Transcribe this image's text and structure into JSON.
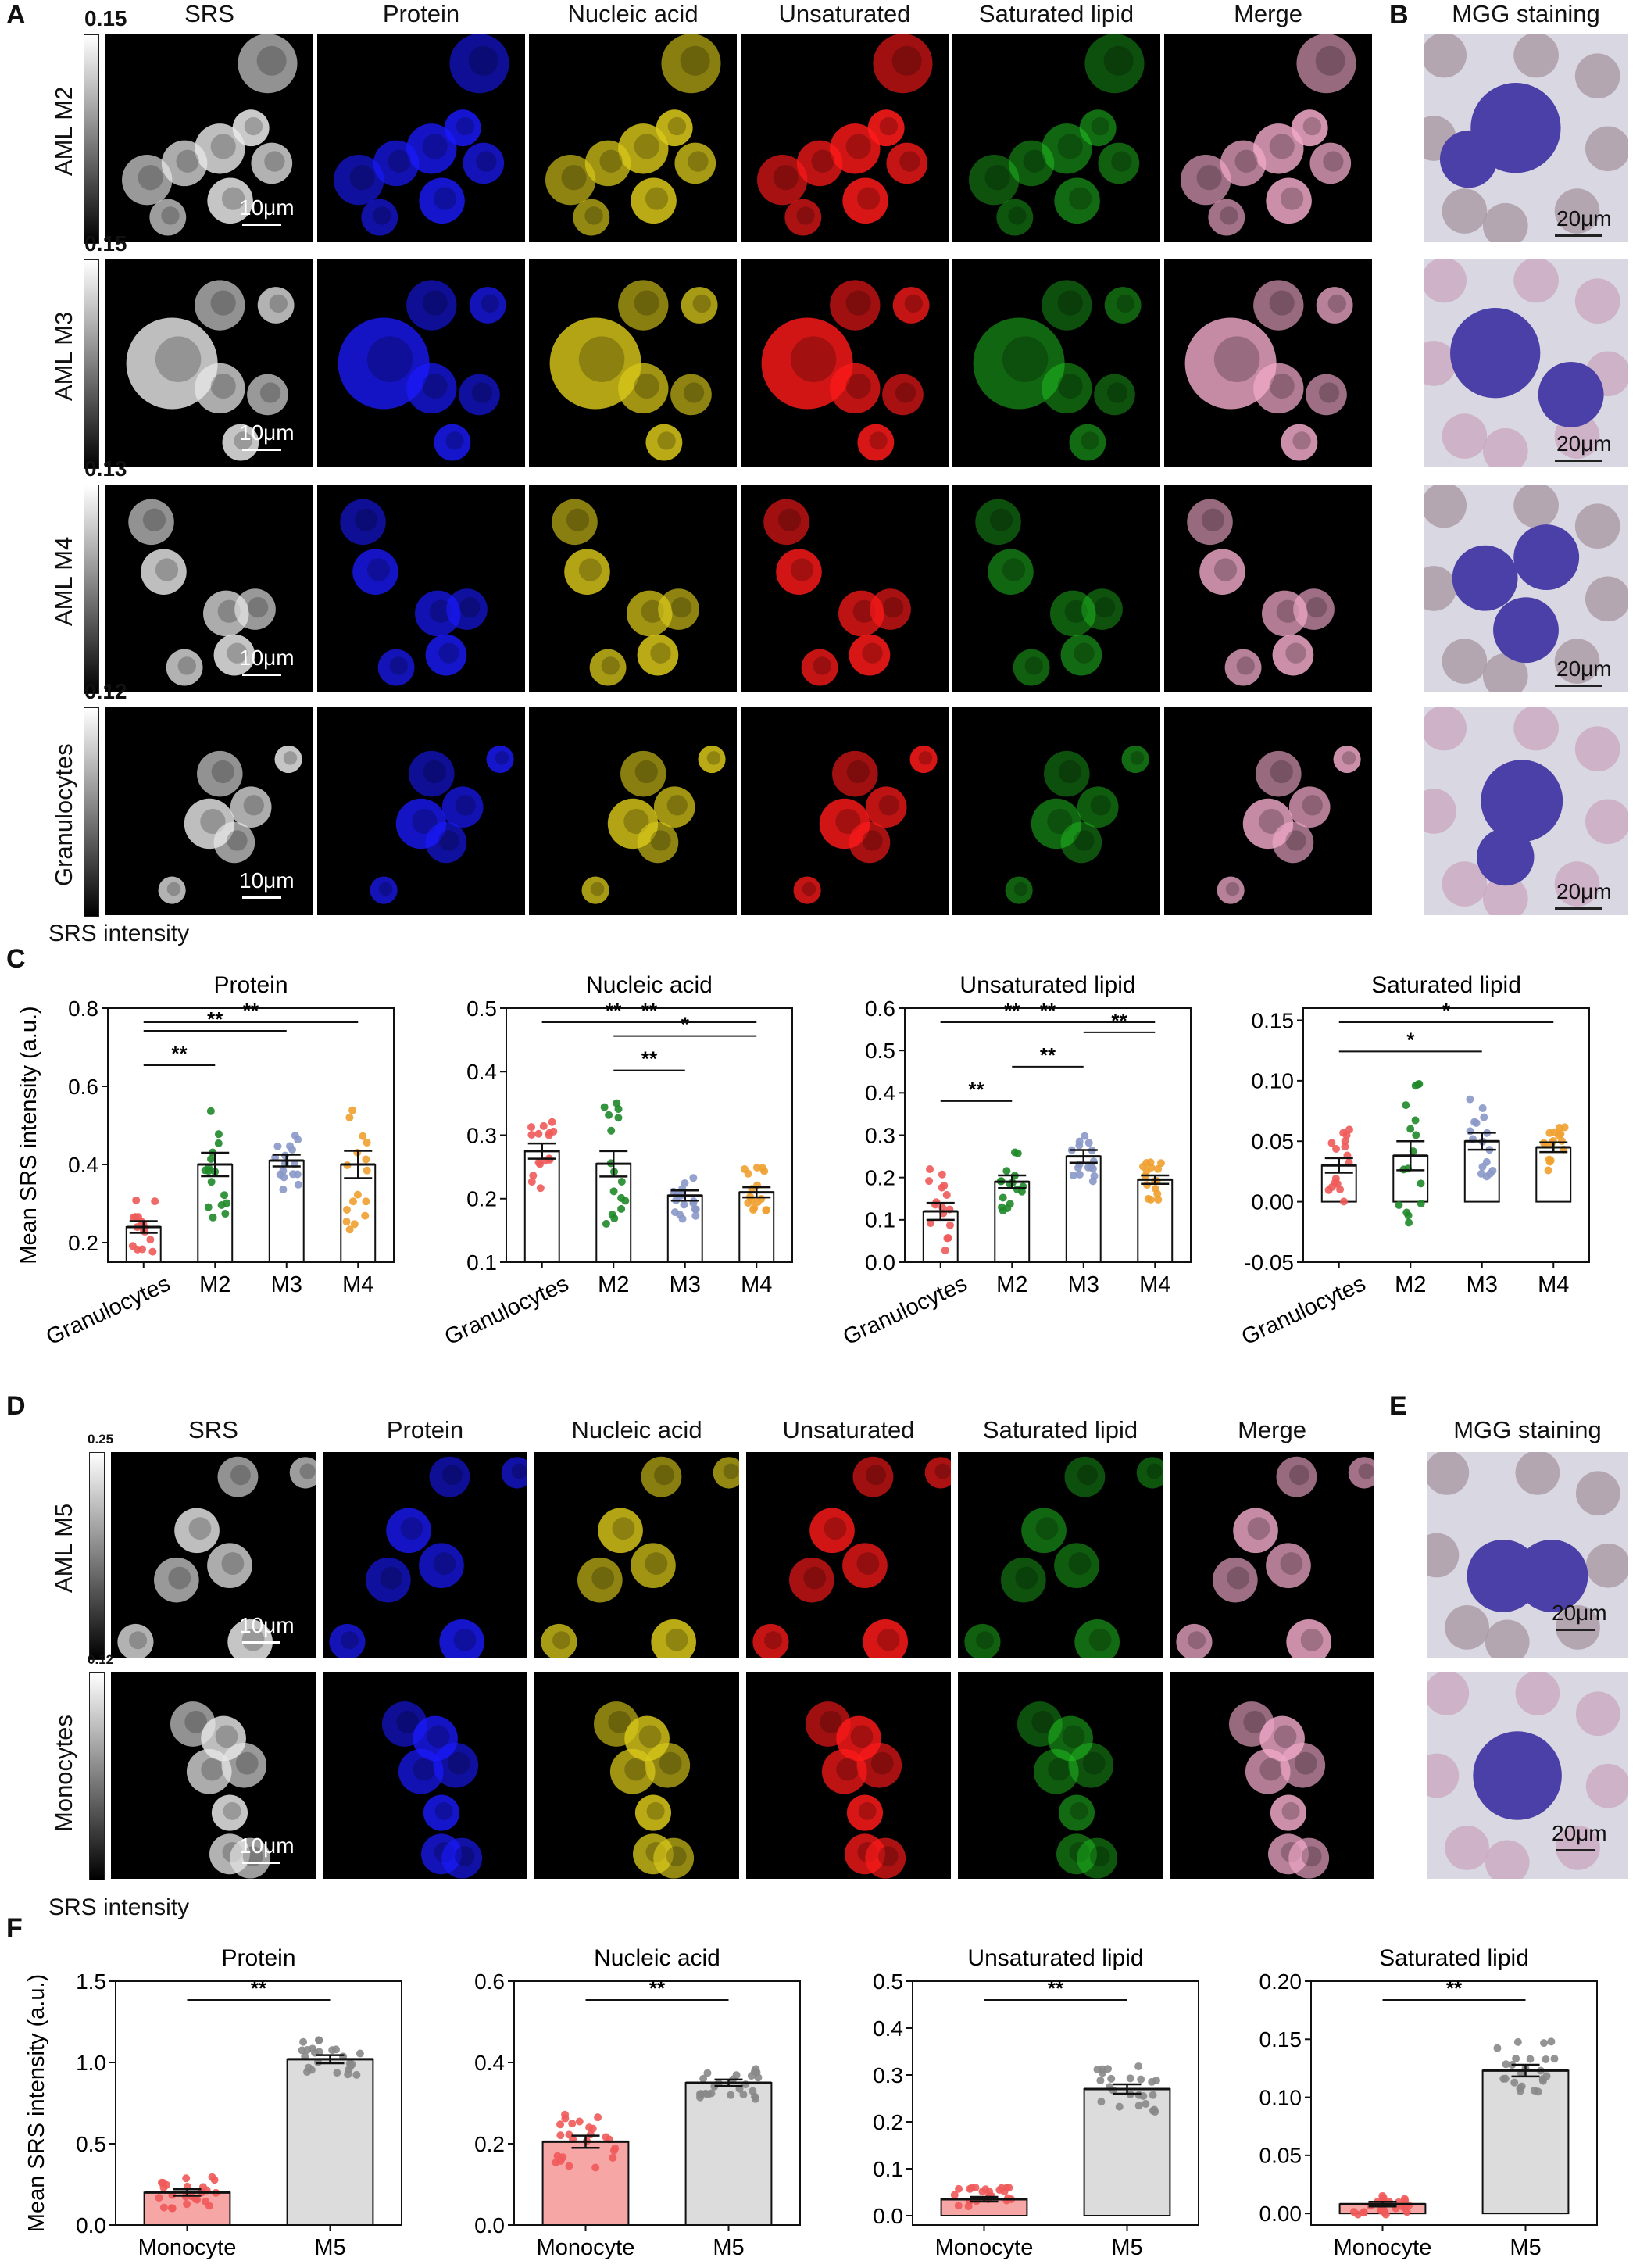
{
  "panels": {
    "A": "A",
    "B": "B",
    "C": "C",
    "D": "D",
    "E": "E",
    "F": "F"
  },
  "channels": [
    "SRS",
    "Protein",
    "Nucleic acid",
    "Unsaturated",
    "Saturated lipid",
    "Merge"
  ],
  "mgg_label": "MGG staining",
  "srs_intensity_label": "SRS intensity",
  "panelA_rows": [
    {
      "label": "AML M2",
      "colorbar_max": "0.15",
      "scale": "10μm",
      "mgg_scale": "20μm"
    },
    {
      "label": "AML M3",
      "colorbar_max": "0.15",
      "scale": "10μm",
      "mgg_scale": "20μm"
    },
    {
      "label": "AML M4",
      "colorbar_max": "0.13",
      "scale": "10μm",
      "mgg_scale": "20μm"
    },
    {
      "label": "Granulocytes",
      "colorbar_max": "0.12",
      "scale": "10μm",
      "mgg_scale": "20μm"
    }
  ],
  "panelD_rows": [
    {
      "label": "AML M5",
      "colorbar_max": "0.25",
      "scale": "10μm",
      "mgg_scale": "20μm"
    },
    {
      "label": "Monocytes",
      "colorbar_max": "0.12",
      "scale": "10μm",
      "mgg_scale": "20μm"
    }
  ],
  "channel_colors": {
    "srs": "#e8e8e8",
    "protein": "#1a1aff",
    "nucleic": "#d9c81a",
    "unsat": "#ff1a1a",
    "sat": "#22cc22",
    "merge": "#f0a8c8"
  },
  "chart_data": [
    {
      "type": "bar",
      "panel": "C",
      "title": "Protein",
      "ylabel": "Mean SRS intensity (a.u.)",
      "ylim": [
        0.15,
        0.8
      ],
      "yticks": [
        "0.2",
        "0.4",
        "0.6",
        "0.8"
      ],
      "ytick_values": [
        0.2,
        0.4,
        0.6,
        0.8
      ],
      "categories": [
        "Granulocytes",
        "M2",
        "M3",
        "M4"
      ],
      "values": [
        0.24,
        0.4,
        0.41,
        0.4
      ],
      "sem": [
        0.015,
        0.03,
        0.015,
        0.035
      ],
      "colors": [
        "#f05a5a",
        "#1f8a2a",
        "#8a98c8",
        "#f0a030"
      ],
      "sig": [
        {
          "from": 0,
          "to": 1,
          "label": "**"
        },
        {
          "from": 0,
          "to": 2,
          "label": "**"
        },
        {
          "from": 0,
          "to": 3,
          "label": "**"
        }
      ]
    },
    {
      "type": "bar",
      "panel": "C",
      "title": "Nucleic acid",
      "ylabel": "",
      "ylim": [
        0.1,
        0.5
      ],
      "yticks": [
        "0.1",
        "0.2",
        "0.3",
        "0.4",
        "0.5"
      ],
      "ytick_values": [
        0.1,
        0.2,
        0.3,
        0.4,
        0.5
      ],
      "categories": [
        "Granulocytes",
        "M2",
        "M3",
        "M4"
      ],
      "values": [
        0.275,
        0.255,
        0.205,
        0.21
      ],
      "sem": [
        0.012,
        0.02,
        0.008,
        0.008
      ],
      "colors": [
        "#f05a5a",
        "#1f8a2a",
        "#8a98c8",
        "#f0a030"
      ],
      "sig": [
        {
          "from": 1,
          "to": 2,
          "label": "**"
        },
        {
          "from": 1,
          "to": 3,
          "label": "*"
        },
        {
          "from": 0,
          "to": 2,
          "label": "**"
        },
        {
          "from": 0,
          "to": 3,
          "label": "**"
        }
      ]
    },
    {
      "type": "bar",
      "panel": "C",
      "title": "Unsaturated lipid",
      "ylabel": "",
      "ylim": [
        0.0,
        0.6
      ],
      "yticks": [
        "0.0",
        "0.1",
        "0.2",
        "0.3",
        "0.4",
        "0.5",
        "0.6"
      ],
      "ytick_values": [
        0,
        0.1,
        0.2,
        0.3,
        0.4,
        0.5,
        0.6
      ],
      "categories": [
        "Granulocytes",
        "M2",
        "M3",
        "M4"
      ],
      "values": [
        0.12,
        0.19,
        0.25,
        0.195
      ],
      "sem": [
        0.02,
        0.015,
        0.015,
        0.01
      ],
      "colors": [
        "#f05a5a",
        "#1f8a2a",
        "#8a98c8",
        "#f0a030"
      ],
      "sig": [
        {
          "from": 0,
          "to": 1,
          "label": "**"
        },
        {
          "from": 1,
          "to": 2,
          "label": "**"
        },
        {
          "from": 2,
          "to": 3,
          "label": "**"
        },
        {
          "from": 0,
          "to": 2,
          "label": "**"
        },
        {
          "from": 0,
          "to": 3,
          "label": "**"
        }
      ]
    },
    {
      "type": "bar",
      "panel": "C",
      "title": "Saturated lipid",
      "ylabel": "",
      "ylim": [
        -0.05,
        0.16
      ],
      "yticks": [
        "-0.05",
        "0.00",
        "0.05",
        "0.10",
        "0.15"
      ],
      "ytick_values": [
        -0.05,
        0,
        0.05,
        0.1,
        0.15
      ],
      "categories": [
        "Granulocytes",
        "M2",
        "M3",
        "M4"
      ],
      "values": [
        0.03,
        0.038,
        0.05,
        0.045
      ],
      "sem": [
        0.006,
        0.012,
        0.007,
        0.004
      ],
      "colors": [
        "#f05a5a",
        "#1f8a2a",
        "#8a98c8",
        "#f0a030"
      ],
      "sig": [
        {
          "from": 0,
          "to": 2,
          "label": "*"
        },
        {
          "from": 0,
          "to": 3,
          "label": "*"
        }
      ]
    },
    {
      "type": "bar",
      "panel": "F",
      "title": "Protein",
      "ylabel": "Mean SRS intensity (a.u.)",
      "ylim": [
        0.0,
        1.5
      ],
      "yticks": [
        "0.0",
        "0.5",
        "1.0",
        "1.5"
      ],
      "ytick_values": [
        0,
        0.5,
        1.0,
        1.5
      ],
      "categories": [
        "Monocyte",
        "M5"
      ],
      "values": [
        0.2,
        1.02
      ],
      "sem": [
        0.02,
        0.025
      ],
      "colors": [
        "#f05a5a",
        "#888888"
      ],
      "fills": [
        "#f7a6a6",
        "#dcdcdc"
      ],
      "sig": [
        {
          "from": 0,
          "to": 1,
          "label": "**"
        }
      ]
    },
    {
      "type": "bar",
      "panel": "F",
      "title": "Nucleic acid",
      "ylabel": "",
      "ylim": [
        0.0,
        0.6
      ],
      "yticks": [
        "0.0",
        "0.2",
        "0.4",
        "0.6"
      ],
      "ytick_values": [
        0,
        0.2,
        0.4,
        0.6
      ],
      "categories": [
        "Monocyte",
        "M5"
      ],
      "values": [
        0.205,
        0.35
      ],
      "sem": [
        0.015,
        0.008
      ],
      "colors": [
        "#f05a5a",
        "#888888"
      ],
      "fills": [
        "#f7a6a6",
        "#dcdcdc"
      ],
      "sig": [
        {
          "from": 0,
          "to": 1,
          "label": "**"
        }
      ]
    },
    {
      "type": "bar",
      "panel": "F",
      "title": "Unsaturated lipid",
      "ylabel": "",
      "ylim": [
        -0.02,
        0.5
      ],
      "yticks": [
        "0.0",
        "0.1",
        "0.2",
        "0.3",
        "0.4",
        "0.5"
      ],
      "ytick_values": [
        0,
        0.1,
        0.2,
        0.3,
        0.4,
        0.5
      ],
      "categories": [
        "Monocyte",
        "M5"
      ],
      "values": [
        0.035,
        0.27
      ],
      "sem": [
        0.005,
        0.01
      ],
      "colors": [
        "#f05a5a",
        "#888888"
      ],
      "fills": [
        "#f7a6a6",
        "#dcdcdc"
      ],
      "sig": [
        {
          "from": 0,
          "to": 1,
          "label": "**"
        }
      ]
    },
    {
      "type": "bar",
      "panel": "F",
      "title": "Saturated lipid",
      "ylabel": "",
      "ylim": [
        -0.01,
        0.2
      ],
      "yticks": [
        "0.00",
        "0.05",
        "0.10",
        "0.15",
        "0.20"
      ],
      "ytick_values": [
        0,
        0.05,
        0.1,
        0.15,
        0.2
      ],
      "categories": [
        "Monocyte",
        "M5"
      ],
      "values": [
        0.008,
        0.123
      ],
      "sem": [
        0.002,
        0.005
      ],
      "colors": [
        "#f05a5a",
        "#888888"
      ],
      "fills": [
        "#f7a6a6",
        "#dcdcdc"
      ],
      "sig": [
        {
          "from": 0,
          "to": 1,
          "label": "**"
        }
      ]
    }
  ]
}
